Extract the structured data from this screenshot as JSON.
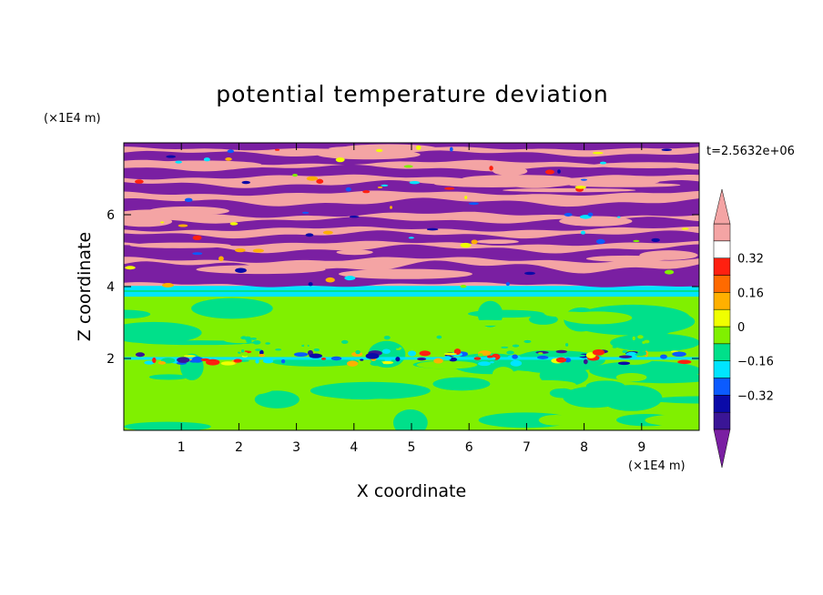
{
  "chart_data": {
    "type": "heatmap",
    "title": "potential temperature deviation",
    "xlabel": "X coordinate",
    "ylabel": "Z coordinate",
    "x_unit": "(×1E4 m)",
    "y_unit": "(×1E4 m)",
    "time_label": "t=2.5632e+06",
    "xlim": [
      0,
      10
    ],
    "ylim": [
      0,
      8
    ],
    "x_ticks": [
      "1",
      "2",
      "3",
      "4",
      "5",
      "6",
      "7",
      "8",
      "9"
    ],
    "y_ticks": [
      "2",
      "4",
      "6"
    ],
    "grid": false,
    "colorbar": {
      "levels": [
        -0.48,
        -0.4,
        -0.32,
        -0.24,
        -0.16,
        -0.08,
        0,
        0.08,
        0.16,
        0.24,
        0.32,
        0.4,
        0.48
      ],
      "tick_labels": [
        "0.32",
        "0.16",
        "0",
        "−0.16",
        "−0.32"
      ],
      "colors": [
        "#7a1fa2",
        "#3a1596",
        "#0a0aa8",
        "#0b5bff",
        "#00e5ff",
        "#00e08a",
        "#80f000",
        "#f0ff00",
        "#ffb000",
        "#ff6a00",
        "#ff2010",
        "#ffffff",
        "#f4a4a4"
      ],
      "under_color": "#7a1fa2",
      "over_color": "#f4a4a4"
    },
    "regions": [
      {
        "z_range": [
          0,
          1.9
        ],
        "description": "mixed green (0 to 0.08) and teal-green (-0.08 to 0) patches"
      },
      {
        "z_range": [
          1.9,
          2.05
        ],
        "description": "thin band with red and blue extremes near Z≈2"
      },
      {
        "z_range": [
          2.05,
          3.7
        ],
        "description": "green and teal-green"
      },
      {
        "z_range": [
          3.7,
          4.0
        ],
        "description": "cyan / light band"
      },
      {
        "z_range": [
          4.0,
          8.0
        ],
        "description": "alternating pink (>0.48) and purple (<-0.48) stripes"
      }
    ]
  }
}
